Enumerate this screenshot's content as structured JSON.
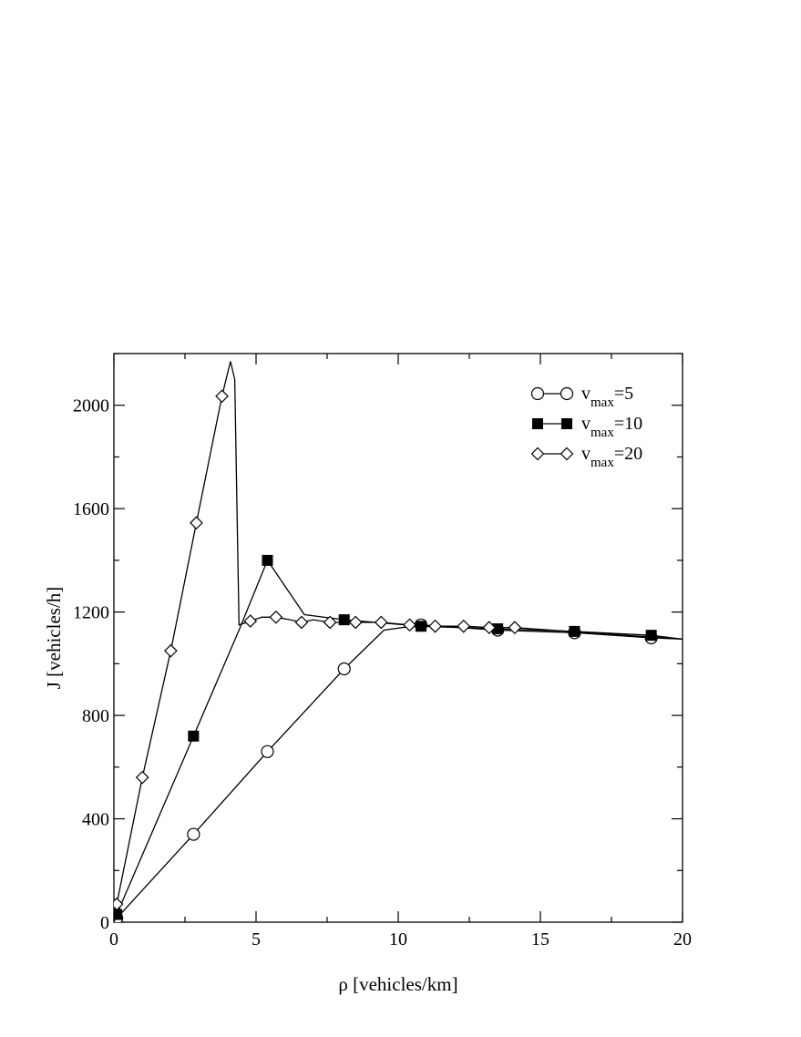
{
  "chart_data": {
    "type": "line",
    "xlabel": "ρ [vehicles/km]",
    "ylabel": "J [vehicles/h]",
    "xlim": [
      0,
      20
    ],
    "ylim": [
      0,
      2200
    ],
    "x_ticks": [
      0,
      5,
      10,
      15,
      20
    ],
    "y_ticks": [
      0,
      400,
      800,
      1200,
      1600,
      2000
    ],
    "grid": false,
    "legend_position": "top-right",
    "series": [
      {
        "name": "v_max=5",
        "legend_base": "v",
        "legend_sub": "max",
        "legend_tail": "=5",
        "marker": "circle",
        "marker_fill": "#ffffff",
        "line": [
          [
            0,
            0
          ],
          [
            0.1,
            15
          ],
          [
            2.8,
            340
          ],
          [
            5.4,
            660
          ],
          [
            8.1,
            980
          ],
          [
            9.5,
            1130
          ],
          [
            10.8,
            1150
          ],
          [
            13.5,
            1130
          ],
          [
            16.2,
            1120
          ],
          [
            18.9,
            1100
          ],
          [
            20,
            1095
          ]
        ],
        "markers": [
          [
            0.1,
            15
          ],
          [
            2.8,
            340
          ],
          [
            5.4,
            660
          ],
          [
            8.1,
            980
          ],
          [
            10.8,
            1150
          ],
          [
            13.5,
            1130
          ],
          [
            16.2,
            1120
          ],
          [
            18.9,
            1100
          ]
        ]
      },
      {
        "name": "v_max=10",
        "legend_base": "v",
        "legend_sub": "max",
        "legend_tail": "=10",
        "marker": "square",
        "marker_fill": "#000000",
        "line": [
          [
            0,
            0
          ],
          [
            0.1,
            30
          ],
          [
            2.8,
            720
          ],
          [
            4.4,
            1130
          ],
          [
            5.4,
            1400
          ],
          [
            6.7,
            1190
          ],
          [
            8.1,
            1170
          ],
          [
            10.8,
            1145
          ],
          [
            13.5,
            1135
          ],
          [
            16.2,
            1125
          ],
          [
            18.9,
            1110
          ],
          [
            20,
            1095
          ]
        ],
        "markers": [
          [
            0.1,
            30
          ],
          [
            2.8,
            720
          ],
          [
            5.4,
            1400
          ],
          [
            8.1,
            1170
          ],
          [
            10.8,
            1145
          ],
          [
            13.5,
            1135
          ],
          [
            16.2,
            1125
          ],
          [
            18.9,
            1110
          ]
        ]
      },
      {
        "name": "v_max=20",
        "legend_base": "v",
        "legend_sub": "max",
        "legend_tail": "=20",
        "marker": "diamond",
        "marker_fill": "#ffffff",
        "line": [
          [
            0,
            0
          ],
          [
            0.1,
            70
          ],
          [
            1.0,
            560
          ],
          [
            2.0,
            1050
          ],
          [
            2.9,
            1545
          ],
          [
            3.8,
            2035
          ],
          [
            4.1,
            2170
          ],
          [
            4.25,
            2100
          ],
          [
            4.4,
            1150
          ],
          [
            4.8,
            1165
          ],
          [
            5.2,
            1180
          ],
          [
            5.7,
            1180
          ],
          [
            6.2,
            1170
          ],
          [
            6.6,
            1160
          ],
          [
            7.0,
            1170
          ],
          [
            7.6,
            1160
          ],
          [
            8.5,
            1160
          ],
          [
            9.4,
            1160
          ],
          [
            10.4,
            1150
          ],
          [
            11.3,
            1145
          ],
          [
            12.3,
            1145
          ],
          [
            13.2,
            1140
          ],
          [
            14.1,
            1140
          ],
          [
            16,
            1125
          ],
          [
            20,
            1095
          ]
        ],
        "markers": [
          [
            0.1,
            70
          ],
          [
            1.0,
            560
          ],
          [
            2.0,
            1050
          ],
          [
            2.9,
            1545
          ],
          [
            3.8,
            2035
          ],
          [
            4.8,
            1165
          ],
          [
            5.7,
            1180
          ],
          [
            6.6,
            1160
          ],
          [
            7.6,
            1160
          ],
          [
            8.5,
            1160
          ],
          [
            9.4,
            1160
          ],
          [
            10.4,
            1150
          ],
          [
            11.3,
            1145
          ],
          [
            12.3,
            1145
          ],
          [
            13.2,
            1140
          ],
          [
            14.1,
            1140
          ]
        ]
      }
    ]
  }
}
